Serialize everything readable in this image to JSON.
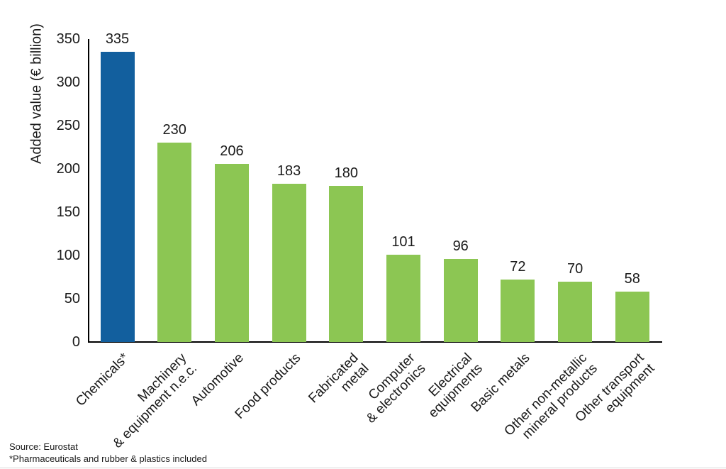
{
  "chart_data": {
    "type": "bar",
    "title": "",
    "xlabel": "",
    "ylabel": "Added value (€ billion)",
    "ylim": [
      0,
      350
    ],
    "yticks": [
      0,
      50,
      100,
      150,
      200,
      250,
      300,
      350
    ],
    "grid": false,
    "legend": false,
    "categories": [
      "Chemicals*",
      "Machinery\n& equipment n.e.c.",
      "Automotive",
      "Food products",
      "Fabricated\nmetal",
      "Computer\n& electronics",
      "Electrical\nequipments",
      "Basic metals",
      "Other non-metallic\nmineral products",
      "Other transport\nequipment"
    ],
    "values": [
      335,
      230,
      206,
      183,
      180,
      101,
      96,
      72,
      70,
      58
    ],
    "highlight_index": 0,
    "colors": {
      "highlight": "#125f9e",
      "default": "#8cc653",
      "axis": "#000000",
      "text": "#1a1a1a"
    }
  },
  "footer": {
    "source": "Source: Eurostat",
    "note": "*Pharmaceuticals and rubber & plastics included"
  }
}
